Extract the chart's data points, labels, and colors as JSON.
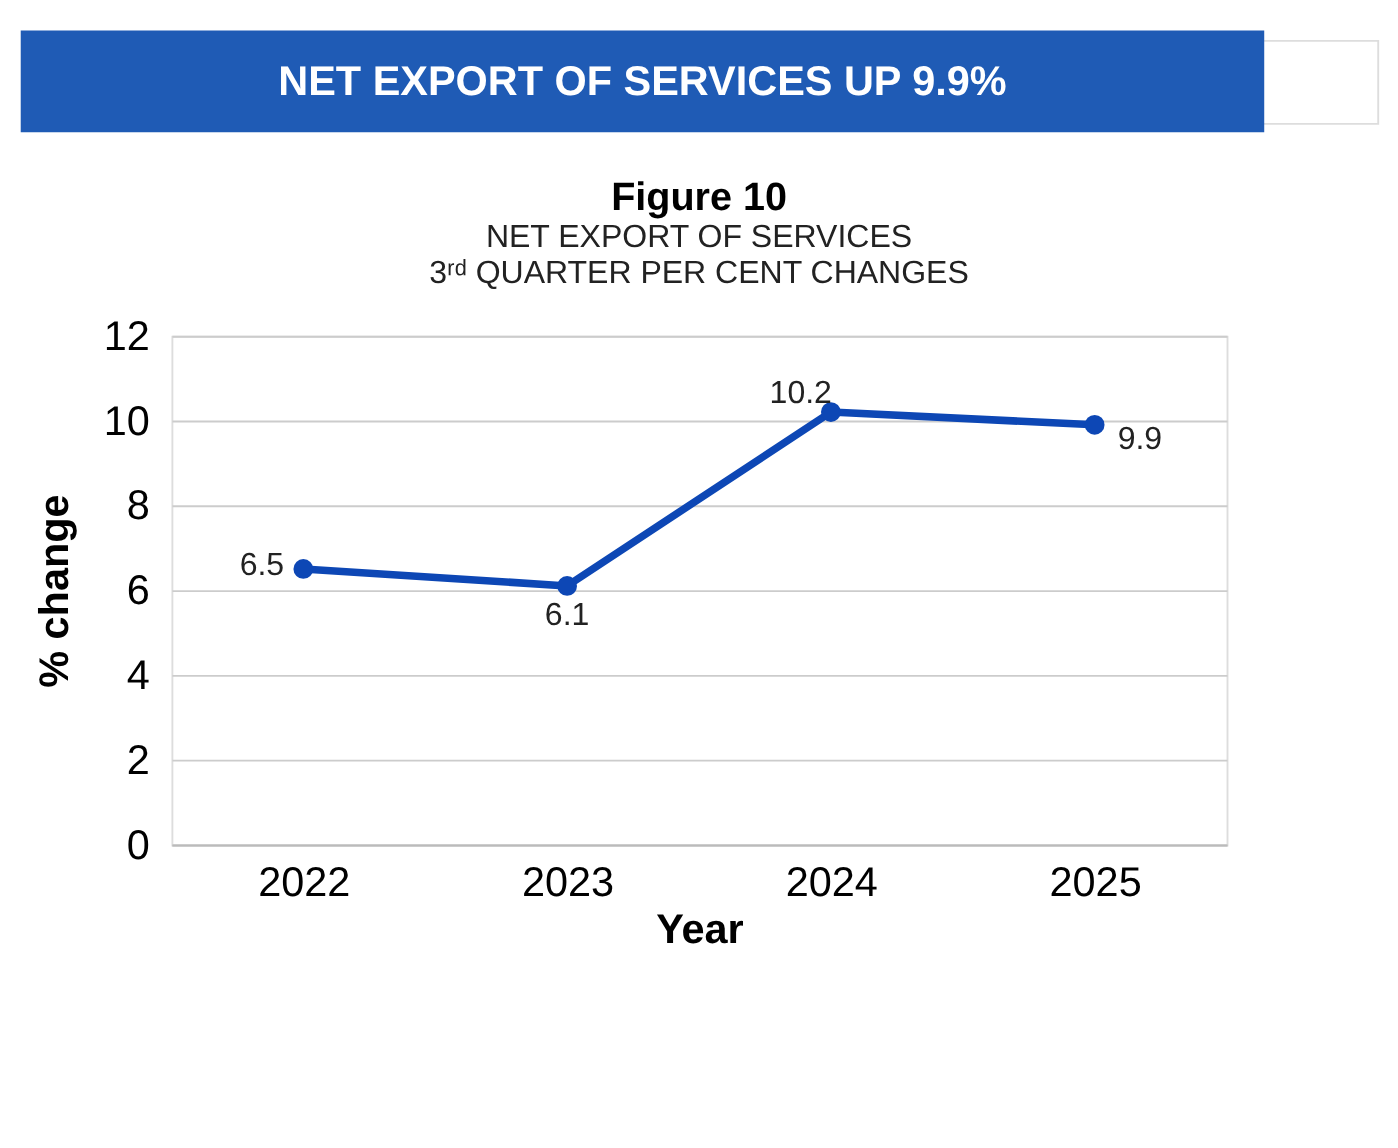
{
  "chart_data": {
    "type": "line",
    "title": "NET EXPORT OF SERVICES UP 9.9%",
    "subtitle": [
      "Figure 10",
      "NET EXPORT OF SERVICES",
      "3ʳᵈ QUARTER PER CENT CHANGES"
    ],
    "categories": [
      "2022",
      "2023",
      "2024",
      "2025"
    ],
    "series": [
      {
        "color": "#0d47b5",
        "values": [
          6.5,
          6.1,
          10.2,
          9.9
        ]
      }
    ],
    "xlabel": "Year",
    "ylabel": "% change",
    "ylim": [
      0,
      12
    ],
    "yticks": [
      0,
      2,
      4,
      6,
      8,
      10,
      12
    ],
    "grid": "y",
    "marker": "circle",
    "line_style": "solid",
    "data_labels": true
  }
}
